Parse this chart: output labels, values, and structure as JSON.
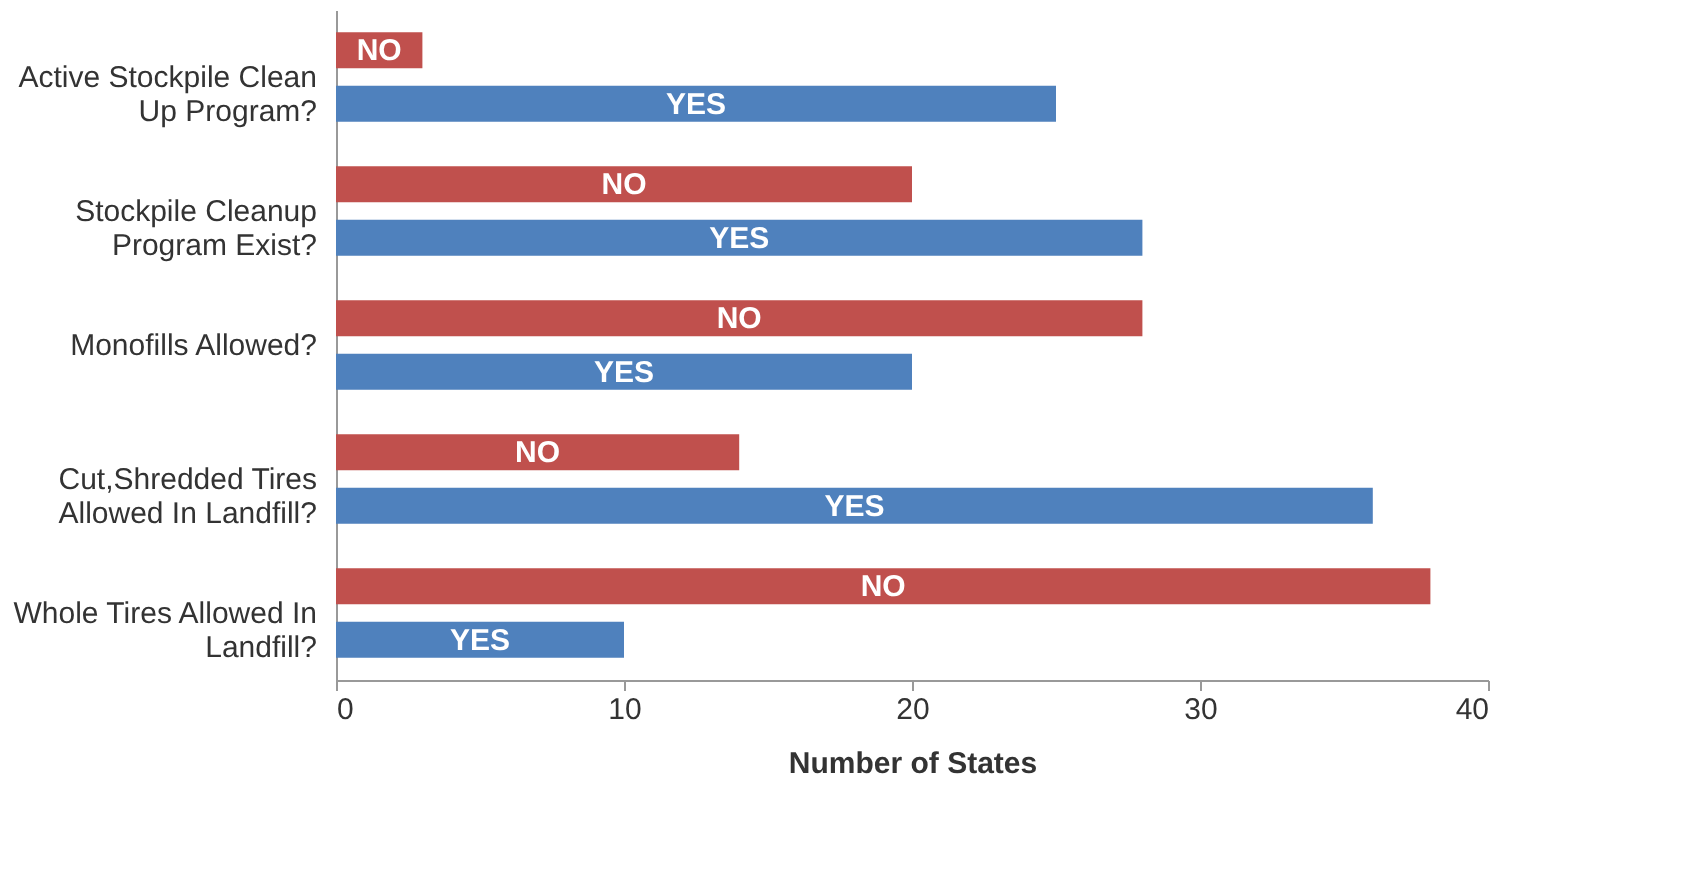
{
  "chart_data": {
    "type": "bar",
    "orientation": "horizontal",
    "xlabel": "Number of States",
    "categories": [
      "Active Stockpile Clean Up Program?",
      "Stockpile Cleanup Program Exist?",
      "Monofills Allowed?",
      "Cut,Shredded Tires Allowed In Landfill?",
      "Whole Tires Allowed In Landfill?"
    ],
    "series": [
      {
        "name": "NO",
        "color": "#c0504d",
        "values": [
          3,
          20,
          28,
          14,
          38
        ]
      },
      {
        "name": "YES",
        "color": "#4f81bd",
        "values": [
          25,
          28,
          20,
          36,
          10
        ]
      }
    ],
    "xlim": [
      0,
      40
    ],
    "xticks": [
      0,
      10,
      20,
      30,
      40
    ],
    "grid": false
  }
}
